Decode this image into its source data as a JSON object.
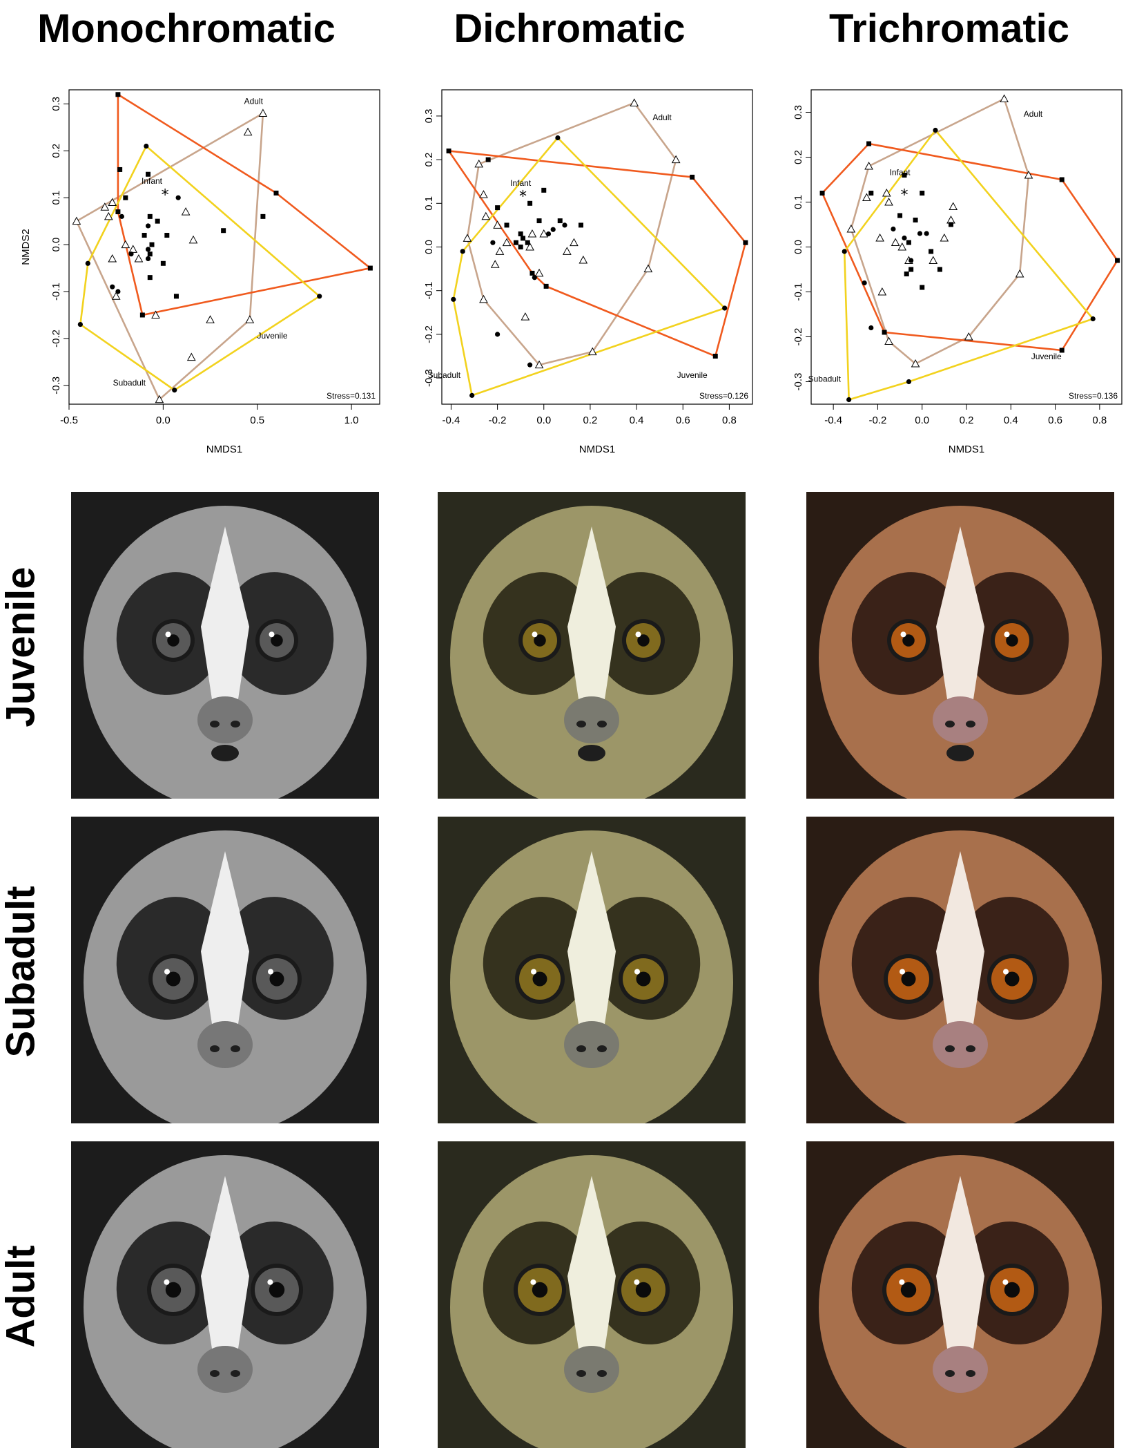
{
  "column_titles": [
    "Monochromatic",
    "Dichromatic",
    "Trichromatic"
  ],
  "row_titles": [
    "Juvenile",
    "Subadult",
    "Adult"
  ],
  "legend_colors": {
    "Adult": "#c8a58c",
    "Juvenile": "#f05a1e",
    "Subadult": "#f2d21e"
  },
  "photo_palettes": {
    "monochromatic": {
      "bg": "#1c1c1c",
      "fur": "#9a9a9a",
      "dark": "#2a2a2a",
      "stripe": "#eeeeee",
      "eye": "#595959",
      "nose": "#777777"
    },
    "dichromatic": {
      "bg": "#2a2a1e",
      "fur": "#9c9668",
      "dark": "#35321e",
      "stripe": "#efeedd",
      "eye": "#806a1e",
      "nose": "#7a7a70"
    },
    "trichromatic": {
      "bg": "#2a1c14",
      "fur": "#a8704c",
      "dark": "#3a2218",
      "stripe": "#f2e8e0",
      "eye": "#b25a14",
      "nose": "#a88080"
    }
  },
  "chart_data": [
    {
      "type": "scatter",
      "title": "Monochromatic",
      "xlabel": "NMDS1",
      "ylabel": "NMDS2",
      "xlim": [
        -0.5,
        1.15
      ],
      "ylim": [
        -0.34,
        0.33
      ],
      "xticks": [
        "-0.5",
        "0.0",
        "0.5",
        "1.0"
      ],
      "yticks": [
        "-0.3",
        "-0.2",
        "-0.1",
        "0.0",
        "0.1",
        "0.2",
        "0.3"
      ],
      "stress": "Stress=0.131",
      "group_labels": [
        {
          "text": "Adult",
          "x": 0.48,
          "y": 0.3
        },
        {
          "text": "Infant",
          "x": -0.06,
          "y": 0.13
        },
        {
          "text": "Juvenile",
          "x": 0.58,
          "y": -0.2
        },
        {
          "text": "Subadult",
          "x": -0.18,
          "y": -0.3
        }
      ],
      "infant": [
        0.01,
        0.11
      ],
      "series": [
        {
          "name": "Adult",
          "marker": "triangle",
          "hull": true,
          "points": [
            [
              -0.46,
              0.05
            ],
            [
              -0.31,
              0.08
            ],
            [
              -0.27,
              0.09
            ],
            [
              -0.29,
              0.06
            ],
            [
              -0.25,
              -0.11
            ],
            [
              -0.2,
              0.0
            ],
            [
              -0.16,
              -0.01
            ],
            [
              -0.13,
              -0.03
            ],
            [
              -0.27,
              -0.03
            ],
            [
              -0.04,
              -0.15
            ],
            [
              0.12,
              0.07
            ],
            [
              0.16,
              0.01
            ],
            [
              0.25,
              -0.16
            ],
            [
              0.15,
              -0.24
            ],
            [
              0.45,
              0.24
            ],
            [
              0.53,
              0.28
            ],
            [
              0.46,
              -0.16
            ],
            [
              -0.02,
              -0.33
            ]
          ]
        },
        {
          "name": "Juvenile",
          "marker": "square",
          "hull": true,
          "points": [
            [
              -0.24,
              0.32
            ],
            [
              -0.23,
              0.16
            ],
            [
              -0.2,
              0.1
            ],
            [
              -0.24,
              0.07
            ],
            [
              -0.08,
              0.15
            ],
            [
              -0.07,
              0.06
            ],
            [
              -0.03,
              0.05
            ],
            [
              -0.1,
              0.02
            ],
            [
              0.02,
              0.02
            ],
            [
              -0.06,
              0.0
            ],
            [
              -0.07,
              -0.02
            ],
            [
              -0.07,
              -0.07
            ],
            [
              0.0,
              -0.04
            ],
            [
              0.07,
              -0.11
            ],
            [
              0.32,
              0.03
            ],
            [
              0.6,
              0.11
            ],
            [
              0.53,
              0.06
            ],
            [
              1.1,
              -0.05
            ],
            [
              -0.11,
              -0.15
            ]
          ]
        },
        {
          "name": "Subadult",
          "marker": "circle",
          "hull": true,
          "points": [
            [
              -0.09,
              0.21
            ],
            [
              -0.4,
              -0.04
            ],
            [
              -0.22,
              0.06
            ],
            [
              -0.27,
              -0.09
            ],
            [
              -0.24,
              -0.1
            ],
            [
              -0.17,
              -0.02
            ],
            [
              -0.08,
              0.04
            ],
            [
              -0.08,
              -0.03
            ],
            [
              -0.08,
              -0.01
            ],
            [
              0.08,
              0.1
            ],
            [
              -0.44,
              -0.17
            ],
            [
              0.06,
              -0.31
            ],
            [
              0.83,
              -0.11
            ]
          ]
        }
      ]
    },
    {
      "type": "scatter",
      "title": "Dichromatic",
      "xlabel": "NMDS1",
      "ylabel": "",
      "xlim": [
        -0.44,
        0.9
      ],
      "ylim": [
        -0.36,
        0.36
      ],
      "xticks": [
        "-0.4",
        "-0.2",
        "0.0",
        "0.2",
        "0.4",
        "0.6",
        "0.8"
      ],
      "yticks": [
        "-0.3",
        "-0.2",
        "-0.1",
        "0.0",
        "0.1",
        "0.2",
        "0.3"
      ],
      "stress": "Stress=0.126",
      "group_labels": [
        {
          "text": "Adult",
          "x": 0.51,
          "y": 0.29
        },
        {
          "text": "Infant",
          "x": -0.1,
          "y": 0.14
        },
        {
          "text": "Juvenile",
          "x": 0.64,
          "y": -0.3
        },
        {
          "text": "Subadult",
          "x": -0.43,
          "y": -0.3
        }
      ],
      "infant": [
        -0.09,
        0.12
      ],
      "series": [
        {
          "name": "Adult",
          "marker": "triangle",
          "hull": true,
          "points": [
            [
              -0.28,
              0.19
            ],
            [
              -0.26,
              0.12
            ],
            [
              -0.33,
              0.02
            ],
            [
              -0.25,
              0.07
            ],
            [
              -0.2,
              0.05
            ],
            [
              -0.16,
              0.01
            ],
            [
              -0.19,
              -0.01
            ],
            [
              -0.05,
              0.03
            ],
            [
              0.0,
              0.03
            ],
            [
              -0.06,
              0.0
            ],
            [
              -0.02,
              -0.06
            ],
            [
              -0.08,
              -0.16
            ],
            [
              -0.21,
              -0.04
            ],
            [
              -0.26,
              -0.12
            ],
            [
              0.13,
              0.01
            ],
            [
              0.17,
              -0.03
            ],
            [
              0.1,
              -0.01
            ],
            [
              0.39,
              0.33
            ],
            [
              0.57,
              0.2
            ],
            [
              0.45,
              -0.05
            ],
            [
              0.21,
              -0.24
            ],
            [
              -0.02,
              -0.27
            ]
          ]
        },
        {
          "name": "Juvenile",
          "marker": "square",
          "hull": true,
          "points": [
            [
              -0.41,
              0.22
            ],
            [
              -0.24,
              0.2
            ],
            [
              -0.2,
              0.09
            ],
            [
              -0.16,
              0.05
            ],
            [
              -0.12,
              0.01
            ],
            [
              -0.1,
              0.03
            ],
            [
              -0.07,
              0.01
            ],
            [
              -0.06,
              0.1
            ],
            [
              -0.02,
              0.06
            ],
            [
              0.0,
              0.13
            ],
            [
              -0.09,
              0.02
            ],
            [
              -0.05,
              -0.06
            ],
            [
              0.01,
              -0.09
            ],
            [
              0.16,
              0.05
            ],
            [
              0.07,
              0.06
            ],
            [
              0.64,
              0.16
            ],
            [
              0.87,
              0.01
            ],
            [
              0.74,
              -0.25
            ],
            [
              -0.1,
              0.0
            ]
          ]
        },
        {
          "name": "Subadult",
          "marker": "circle",
          "hull": true,
          "points": [
            [
              0.06,
              0.25
            ],
            [
              -0.35,
              -0.01
            ],
            [
              -0.22,
              0.01
            ],
            [
              -0.2,
              -0.2
            ],
            [
              -0.04,
              -0.07
            ],
            [
              0.02,
              0.03
            ],
            [
              0.04,
              0.04
            ],
            [
              0.09,
              0.05
            ],
            [
              -0.06,
              -0.27
            ],
            [
              -0.39,
              -0.12
            ],
            [
              -0.31,
              -0.34
            ],
            [
              0.78,
              -0.14
            ]
          ]
        }
      ]
    },
    {
      "type": "scatter",
      "title": "Trichromatic",
      "xlabel": "NMDS1",
      "ylabel": "",
      "xlim": [
        -0.5,
        0.9
      ],
      "ylim": [
        -0.35,
        0.35
      ],
      "xticks": [
        "-0.4",
        "-0.2",
        "0.0",
        "0.2",
        "0.4",
        "0.6",
        "0.8"
      ],
      "yticks": [
        "-0.3",
        "-0.2",
        "-0.1",
        "0.0",
        "0.1",
        "0.2",
        "0.3"
      ],
      "stress": "Stress=0.136",
      "group_labels": [
        {
          "text": "Adult",
          "x": 0.5,
          "y": 0.29
        },
        {
          "text": "Infant",
          "x": -0.1,
          "y": 0.16
        },
        {
          "text": "Juvenile",
          "x": 0.56,
          "y": -0.25
        },
        {
          "text": "Subadult",
          "x": -0.44,
          "y": -0.3
        }
      ],
      "infant": [
        -0.08,
        0.12
      ],
      "series": [
        {
          "name": "Adult",
          "marker": "triangle",
          "hull": true,
          "points": [
            [
              -0.24,
              0.18
            ],
            [
              -0.25,
              0.11
            ],
            [
              -0.32,
              0.04
            ],
            [
              -0.16,
              0.12
            ],
            [
              -0.15,
              0.1
            ],
            [
              -0.19,
              0.02
            ],
            [
              -0.18,
              -0.1
            ],
            [
              -0.12,
              0.01
            ],
            [
              -0.09,
              0.0
            ],
            [
              -0.06,
              -0.03
            ],
            [
              0.05,
              -0.03
            ],
            [
              0.1,
              0.02
            ],
            [
              0.14,
              0.09
            ],
            [
              0.13,
              0.06
            ],
            [
              0.37,
              0.33
            ],
            [
              0.48,
              0.16
            ],
            [
              0.44,
              -0.06
            ],
            [
              0.21,
              -0.2
            ],
            [
              -0.15,
              -0.21
            ],
            [
              -0.03,
              -0.26
            ]
          ]
        },
        {
          "name": "Juvenile",
          "marker": "square",
          "hull": true,
          "points": [
            [
              -0.45,
              0.12
            ],
            [
              -0.24,
              0.23
            ],
            [
              -0.23,
              0.12
            ],
            [
              -0.08,
              0.16
            ],
            [
              0.0,
              0.12
            ],
            [
              -0.03,
              0.06
            ],
            [
              -0.1,
              0.07
            ],
            [
              -0.06,
              0.01
            ],
            [
              -0.05,
              -0.05
            ],
            [
              0.04,
              -0.01
            ],
            [
              0.08,
              -0.05
            ],
            [
              0.13,
              0.05
            ],
            [
              -0.07,
              -0.06
            ],
            [
              0.0,
              -0.09
            ],
            [
              0.63,
              0.15
            ],
            [
              0.88,
              -0.03
            ],
            [
              0.63,
              -0.23
            ],
            [
              -0.17,
              -0.19
            ]
          ]
        },
        {
          "name": "Subadult",
          "marker": "circle",
          "hull": true,
          "points": [
            [
              0.06,
              0.26
            ],
            [
              -0.35,
              -0.01
            ],
            [
              -0.13,
              0.04
            ],
            [
              -0.08,
              0.02
            ],
            [
              -0.01,
              0.03
            ],
            [
              0.02,
              0.03
            ],
            [
              -0.26,
              -0.08
            ],
            [
              -0.23,
              -0.18
            ],
            [
              -0.05,
              -0.03
            ],
            [
              0.77,
              -0.16
            ],
            [
              -0.33,
              -0.34
            ],
            [
              -0.06,
              -0.3
            ]
          ]
        }
      ]
    }
  ]
}
